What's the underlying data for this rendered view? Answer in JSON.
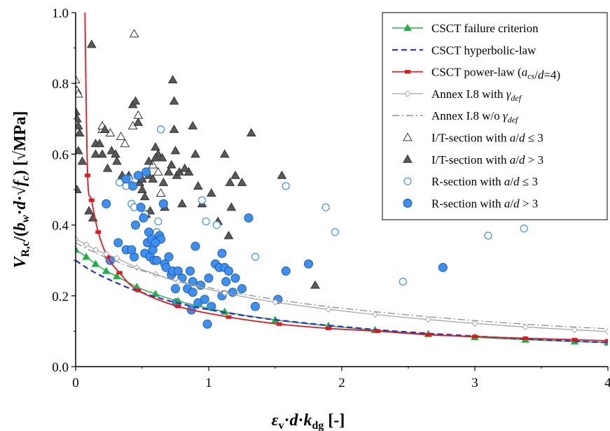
{
  "chart_data": {
    "type": "scatter",
    "title": "",
    "xlabel": "εv·d·kdg [-]",
    "ylabel": "VR,c/(bw·d·√fc) [√MPa]",
    "xlim": [
      0,
      4
    ],
    "ylim": [
      0,
      1.0
    ],
    "x_ticks": [
      "0",
      "1",
      "2",
      "3",
      "4"
    ],
    "y_ticks": [
      "0.0",
      "0.2",
      "0.4",
      "0.6",
      "0.8",
      "1.0"
    ],
    "grid": false,
    "legend_position": "top-right",
    "colors": {
      "failure_criterion": "#22b04a",
      "hyperbolic": "#1f2fd6",
      "power": "#e8141b",
      "annex": "#a6a6a6",
      "annex_wo": "#8c8c8c",
      "it_open": "#333333",
      "it_filled": "#595959",
      "r_open": "#3d8ff0",
      "r_filled": "#3d8ff0"
    },
    "series": [
      {
        "name": "CSCT failure criterion",
        "kind": "line-marker-triangle",
        "x": [
          0,
          0.08,
          0.15,
          0.23,
          0.31,
          0.46,
          0.6,
          0.77,
          1.12,
          1.5,
          1.9,
          2.25,
          2.65,
          3.0,
          3.38,
          3.75,
          4.0
        ],
        "y": [
          0.33,
          0.31,
          0.29,
          0.27,
          0.255,
          0.225,
          0.205,
          0.185,
          0.155,
          0.132,
          0.115,
          0.103,
          0.092,
          0.083,
          0.076,
          0.071,
          0.068
        ]
      },
      {
        "name": "CSCT hyperbolic-law",
        "kind": "dashed-line",
        "x": [
          0,
          0.1,
          0.2,
          0.3,
          0.4,
          0.5,
          0.6,
          0.7,
          0.8,
          0.9,
          1.0,
          1.2,
          1.4,
          1.6,
          1.8,
          2.0,
          2.3,
          2.6,
          3.0,
          3.4,
          3.8,
          4.0
        ],
        "y": [
          0.3,
          0.275,
          0.255,
          0.238,
          0.222,
          0.209,
          0.197,
          0.186,
          0.177,
          0.168,
          0.161,
          0.148,
          0.137,
          0.128,
          0.12,
          0.113,
          0.103,
          0.095,
          0.086,
          0.078,
          0.071,
          0.068
        ]
      },
      {
        "name": "CSCT power-law (acs/d=4)",
        "kind": "line-marker-square",
        "x": [
          0.07,
          0.09,
          0.12,
          0.17,
          0.24,
          0.33,
          0.47,
          0.77,
          1.15,
          1.53,
          1.9,
          2.27,
          2.65,
          3.0,
          3.38,
          3.75,
          4.0
        ],
        "y": [
          1.0,
          0.54,
          0.47,
          0.38,
          0.31,
          0.265,
          0.215,
          0.17,
          0.14,
          0.12,
          0.108,
          0.1,
          0.09,
          0.085,
          0.08,
          0.076,
          0.073
        ]
      },
      {
        "name": "Annex I.8 with γdef",
        "kind": "line-marker-diamond",
        "x": [
          0,
          0.08,
          0.15,
          0.23,
          0.31,
          0.46,
          0.6,
          0.77,
          1.12,
          1.5,
          1.9,
          2.25,
          2.65,
          3.0,
          3.38,
          3.75,
          4.0
        ],
        "y": [
          0.36,
          0.345,
          0.33,
          0.318,
          0.306,
          0.28,
          0.261,
          0.24,
          0.208,
          0.182,
          0.162,
          0.147,
          0.133,
          0.122,
          0.112,
          0.104,
          0.099
        ]
      },
      {
        "name": "Annex I.8 w/o γdef",
        "kind": "dashdot-line",
        "x": [
          0,
          0.1,
          0.2,
          0.3,
          0.45,
          0.6,
          0.8,
          1.0,
          1.2,
          1.5,
          1.8,
          2.1,
          2.5,
          3.0,
          3.5,
          4.0
        ],
        "y": [
          0.35,
          0.33,
          0.313,
          0.298,
          0.277,
          0.26,
          0.24,
          0.223,
          0.208,
          0.19,
          0.174,
          0.161,
          0.146,
          0.13,
          0.117,
          0.107
        ]
      },
      {
        "name": "I/T-section with a/d ≤ 3",
        "kind": "open-triangle",
        "x": [
          0.0,
          0.01,
          0.02,
          0.2,
          0.26,
          0.34,
          0.37,
          0.43,
          0.44,
          0.47,
          0.58,
          0.62,
          0.64,
          0.2
        ],
        "y": [
          0.81,
          0.78,
          0.77,
          0.67,
          0.66,
          0.65,
          0.63,
          0.68,
          0.94,
          0.71,
          0.57,
          0.55,
          0.49,
          0.68
        ]
      },
      {
        "name": "I/T-section with a/d > 3",
        "kind": "filled-triangle",
        "x": [
          0,
          0.01,
          0.02,
          0.03,
          0.02,
          0.01,
          0.05,
          0.1,
          0.12,
          0.15,
          0.13,
          0.15,
          0.18,
          0.2,
          0.22,
          0.24,
          0.27,
          0.3,
          0.31,
          0.35,
          0.4,
          0.43,
          0.45,
          0.47,
          0.48,
          0.5,
          0.52,
          0.53,
          0.55,
          0.56,
          0.58,
          0.6,
          0.62,
          0.65,
          0.66,
          0.67,
          0.7,
          0.73,
          0.74,
          0.75,
          0.76,
          0.78,
          0.8,
          0.85,
          0.88,
          0.9,
          0.92,
          0.95,
          1.02,
          1.07,
          1.12,
          1.15,
          1.17,
          1.2,
          1.25,
          1.32,
          1.55,
          1.8,
          0.85,
          0.6,
          0.55,
          0.82,
          0.5,
          1.16,
          0.74,
          0.72
        ],
        "y": [
          0.72,
          0.7,
          0.68,
          0.66,
          0.61,
          0.5,
          0.58,
          0.44,
          0.91,
          0.63,
          0.42,
          0.6,
          0.63,
          0.6,
          0.67,
          0.56,
          0.61,
          0.6,
          0.58,
          0.54,
          0.54,
          0.74,
          0.75,
          0.69,
          0.52,
          0.5,
          0.48,
          0.43,
          0.54,
          0.44,
          0.53,
          0.62,
          0.6,
          0.59,
          0.52,
          0.45,
          0.55,
          0.81,
          0.75,
          0.61,
          0.54,
          0.55,
          0.46,
          0.55,
          0.68,
          0.6,
          0.51,
          0.46,
          0.49,
          0.41,
          0.6,
          0.37,
          0.45,
          0.54,
          0.52,
          0.66,
          0.54,
          0.23,
          0.55,
          0.59,
          0.58,
          0.56,
          0.53,
          0.52,
          0.67,
          0.57
        ]
      },
      {
        "name": "R-section with a/d ≤ 3",
        "kind": "open-circle",
        "x": [
          0.33,
          0.38,
          0.4,
          0.42,
          0.44,
          0.52,
          0.62,
          0.64,
          0.98,
          1.06,
          1.35,
          1.58,
          1.88,
          1.95,
          2.46,
          3.1,
          3.37,
          0.95,
          0.61
        ],
        "y": [
          0.52,
          0.51,
          0.53,
          0.46,
          0.45,
          0.43,
          0.41,
          0.67,
          0.41,
          0.4,
          0.31,
          0.51,
          0.45,
          0.38,
          0.24,
          0.37,
          0.39,
          0.47,
          0.38
        ]
      },
      {
        "name": "R-section with a/d > 3",
        "kind": "filled-circle",
        "x": [
          0.23,
          0.26,
          0.32,
          0.38,
          0.38,
          0.43,
          0.44,
          0.45,
          0.49,
          0.51,
          0.52,
          0.54,
          0.55,
          0.56,
          0.57,
          0.58,
          0.59,
          0.61,
          0.63,
          0.64,
          0.66,
          0.67,
          0.68,
          0.7,
          0.72,
          0.73,
          0.75,
          0.76,
          0.77,
          0.8,
          0.84,
          0.86,
          0.87,
          0.88,
          0.9,
          0.92,
          0.94,
          0.97,
          0.99,
          1.02,
          1.05,
          1.08,
          1.1,
          1.12,
          1.15,
          1.18,
          1.2,
          1.25,
          1.3,
          1.35,
          1.52,
          1.58,
          1.75,
          2.76,
          0.42,
          0.47,
          0.6,
          0.53,
          0.88,
          1.1,
          1.13,
          1.0
        ],
        "y": [
          0.46,
          0.3,
          0.35,
          0.53,
          0.33,
          0.51,
          0.31,
          0.4,
          0.45,
          0.42,
          0.32,
          0.35,
          0.38,
          0.31,
          0.36,
          0.33,
          0.3,
          0.3,
          0.37,
          0.36,
          0.46,
          0.29,
          0.28,
          0.31,
          0.26,
          0.27,
          0.22,
          0.18,
          0.27,
          0.25,
          0.22,
          0.27,
          0.16,
          0.24,
          0.34,
          0.18,
          0.23,
          0.19,
          0.12,
          0.17,
          0.29,
          0.28,
          0.32,
          0.28,
          0.27,
          0.21,
          0.25,
          0.22,
          0.42,
          0.17,
          0.19,
          0.27,
          0.29,
          0.28,
          0.33,
          0.54,
          0.35,
          0.55,
          0.21,
          0.2,
          0.24,
          0.25
        ]
      }
    ],
    "legend": [
      {
        "kind": "line-marker-triangle",
        "parts": [
          {
            "t": "CSCT failure criterion"
          }
        ]
      },
      {
        "kind": "dashed-line",
        "parts": [
          {
            "t": "CSCT hyperbolic-law"
          }
        ]
      },
      {
        "kind": "line-marker-square",
        "parts": [
          {
            "t": "CSCT power-law ("
          },
          {
            "t": "a",
            "i": true
          },
          {
            "t": "cs",
            "i": true,
            "sub": true
          },
          {
            "t": "/"
          },
          {
            "t": "d",
            "i": true
          },
          {
            "t": "=4)"
          }
        ]
      },
      {
        "kind": "line-marker-diamond",
        "parts": [
          {
            "t": "Annex I.8 with "
          },
          {
            "t": "γ",
            "i": true
          },
          {
            "t": "def",
            "i": true,
            "sub": true
          }
        ]
      },
      {
        "kind": "dashdot-line",
        "parts": [
          {
            "t": "Annex I.8 w/o "
          },
          {
            "t": "γ",
            "i": true
          },
          {
            "t": "def",
            "i": true,
            "sub": true
          }
        ]
      },
      {
        "kind": "open-triangle",
        "parts": [
          {
            "t": "I/T-section with "
          },
          {
            "t": "a",
            "i": true
          },
          {
            "t": "/"
          },
          {
            "t": "d",
            "i": true
          },
          {
            "t": " ≤ 3"
          }
        ]
      },
      {
        "kind": "filled-triangle",
        "parts": [
          {
            "t": "I/T-section with "
          },
          {
            "t": "a",
            "i": true
          },
          {
            "t": "/"
          },
          {
            "t": "d",
            "i": true
          },
          {
            "t": " > 3"
          }
        ]
      },
      {
        "kind": "open-circle",
        "parts": [
          {
            "t": "R-section with "
          },
          {
            "t": "a",
            "i": true
          },
          {
            "t": "/"
          },
          {
            "t": "d",
            "i": true
          },
          {
            "t": " ≤ 3"
          }
        ]
      },
      {
        "kind": "filled-circle",
        "parts": [
          {
            "t": "R-section with "
          },
          {
            "t": "a",
            "i": true
          },
          {
            "t": "/"
          },
          {
            "t": "d",
            "i": true
          },
          {
            "t": " > 3"
          }
        ]
      }
    ]
  }
}
